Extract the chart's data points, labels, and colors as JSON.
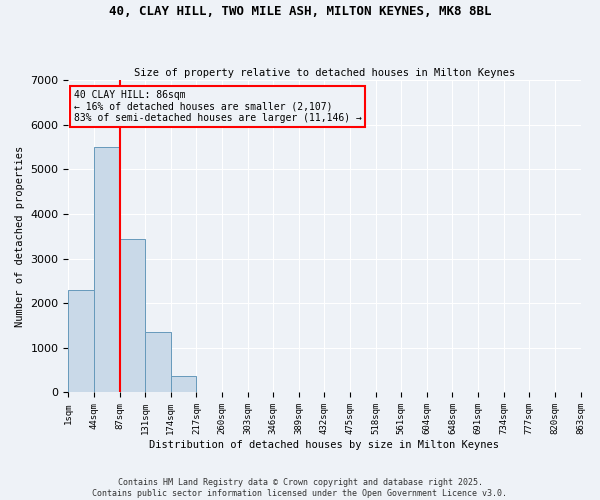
{
  "title1": "40, CLAY HILL, TWO MILE ASH, MILTON KEYNES, MK8 8BL",
  "title2": "Size of property relative to detached houses in Milton Keynes",
  "xlabel": "Distribution of detached houses by size in Milton Keynes",
  "ylabel": "Number of detached properties",
  "bar_values": [
    2300,
    5500,
    3450,
    1350,
    380,
    0,
    0,
    0,
    0,
    0,
    0,
    0,
    0,
    0,
    0,
    0,
    0,
    0,
    0,
    0
  ],
  "categories": [
    "1sqm",
    "44sqm",
    "87sqm",
    "131sqm",
    "174sqm",
    "217sqm",
    "260sqm",
    "303sqm",
    "346sqm",
    "389sqm",
    "432sqm",
    "475sqm",
    "518sqm",
    "561sqm",
    "604sqm",
    "648sqm",
    "691sqm",
    "734sqm",
    "777sqm",
    "820sqm",
    "863sqm"
  ],
  "bar_color": "#c9d9e8",
  "bar_edge_color": "#6699bb",
  "annotation_text": "40 CLAY HILL: 86sqm\n← 16% of detached houses are smaller (2,107)\n83% of semi-detached houses are larger (11,146) →",
  "vline_x": 2,
  "ylim": [
    0,
    7000
  ],
  "yticks": [
    0,
    1000,
    2000,
    3000,
    4000,
    5000,
    6000,
    7000
  ],
  "footnote1": "Contains HM Land Registry data © Crown copyright and database right 2025.",
  "footnote2": "Contains public sector information licensed under the Open Government Licence v3.0.",
  "bg_color": "#eef2f7"
}
